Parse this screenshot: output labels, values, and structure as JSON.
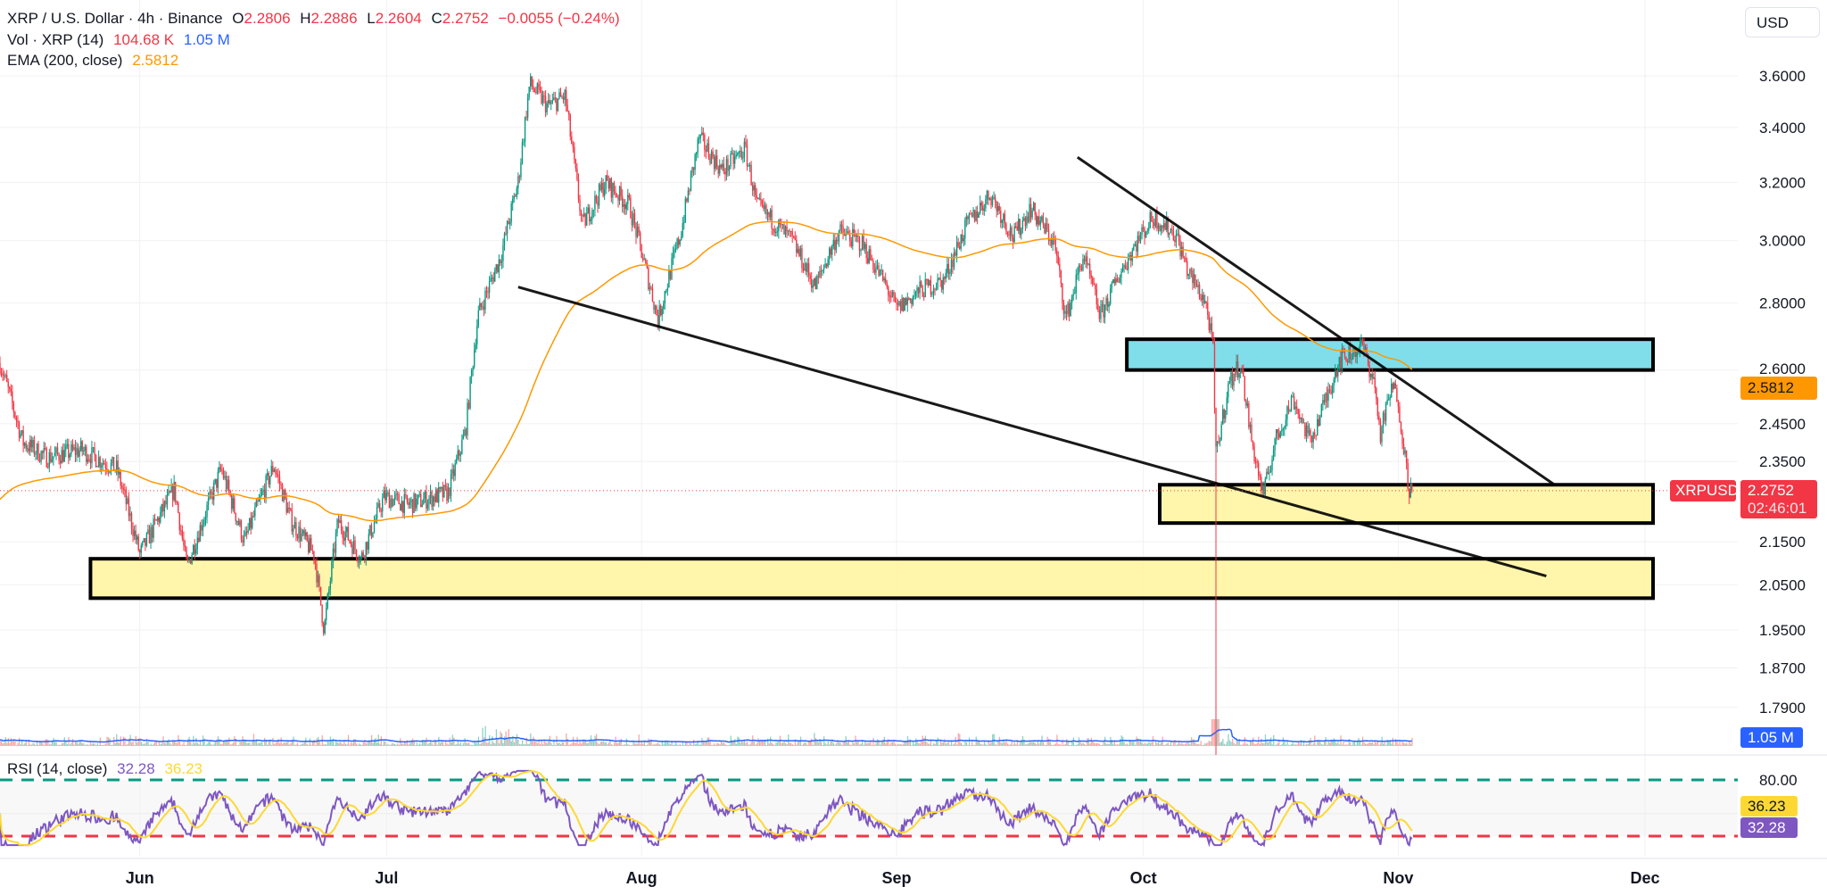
{
  "header": {
    "symbol": "XRP / U.S. Dollar · 4h · Binance",
    "o_label": "O",
    "o": "2.2806",
    "h_label": "H",
    "h": "2.2886",
    "l_label": "L",
    "l": "2.2604",
    "c_label": "C",
    "c": "2.2752",
    "change": "−0.0055 (−0.24%)"
  },
  "volume": {
    "label": "Vol · XRP (14)",
    "value": "104.68 K",
    "ma": "1.05 M",
    "tag": "1.05 M"
  },
  "ema": {
    "label": "EMA (200, close)",
    "value": "2.5812",
    "tag": "2.5812"
  },
  "rsi": {
    "label": "RSI (14, close)",
    "value": "32.28",
    "ma": "36.23",
    "upper_label": "80.00"
  },
  "currency_button": "USD",
  "price_tag": {
    "symbol": "XRPUSD",
    "price": "2.2752",
    "countdown": "02:46:01"
  },
  "colors": {
    "up": "#089981",
    "down": "#f23645",
    "ema": "#ff9800",
    "rsi": "#7e57c2",
    "rsi_ma": "#fdd835",
    "volume_ma": "#2962ff",
    "zone_blue": "#80deea",
    "zone_yellow": "#fff59d"
  },
  "chart_data": {
    "type": "candlestick",
    "title": "XRP / U.S. Dollar · 4h · Binance",
    "scale": "log",
    "y_ticks": [
      "3.6000",
      "3.4000",
      "3.2000",
      "3.0000",
      "2.8000",
      "2.6000",
      "2.4500",
      "2.3500",
      "2.1500",
      "2.0500",
      "1.9500",
      "1.8700",
      "1.7900"
    ],
    "x_ticks": [
      {
        "label": "Jun",
        "day": 17
      },
      {
        "label": "Jul",
        "day": 47
      },
      {
        "label": "Aug",
        "day": 78
      },
      {
        "label": "Sep",
        "day": 109
      },
      {
        "label": "Oct",
        "day": 139
      },
      {
        "label": "Nov",
        "day": 170
      },
      {
        "label": "Dec",
        "day": 200
      }
    ],
    "x_unit": "days since May 15",
    "close_path": [
      [
        0,
        2.62
      ],
      [
        2.8,
        2.4
      ],
      [
        5.7,
        2.36
      ],
      [
        9.9,
        2.38
      ],
      [
        14.2,
        2.33
      ],
      [
        17,
        2.12
      ],
      [
        21.2,
        2.28
      ],
      [
        22.7,
        2.09
      ],
      [
        26.9,
        2.33
      ],
      [
        29.7,
        2.15
      ],
      [
        33.3,
        2.34
      ],
      [
        35.4,
        2.2
      ],
      [
        38.2,
        2.12
      ],
      [
        39.4,
        1.95
      ],
      [
        41.1,
        2.2
      ],
      [
        43.9,
        2.11
      ],
      [
        46.7,
        2.26
      ],
      [
        49.6,
        2.24
      ],
      [
        54.5,
        2.27
      ],
      [
        56.6,
        2.43
      ],
      [
        58.1,
        2.76
      ],
      [
        60.9,
        2.95
      ],
      [
        63,
        3.2
      ],
      [
        64.4,
        3.57
      ],
      [
        66.6,
        3.48
      ],
      [
        68.7,
        3.52
      ],
      [
        70.1,
        3.2
      ],
      [
        70.8,
        3.05
      ],
      [
        73.6,
        3.2
      ],
      [
        76.5,
        3.12
      ],
      [
        80,
        2.75
      ],
      [
        82.8,
        3.03
      ],
      [
        85,
        3.36
      ],
      [
        87.8,
        3.24
      ],
      [
        90.6,
        3.32
      ],
      [
        92,
        3.12
      ],
      [
        96.3,
        3.0
      ],
      [
        99.1,
        2.85
      ],
      [
        102,
        3.03
      ],
      [
        104.8,
        2.99
      ],
      [
        107.6,
        2.86
      ],
      [
        109,
        2.78
      ],
      [
        111.9,
        2.84
      ],
      [
        114.7,
        2.87
      ],
      [
        117.5,
        3.05
      ],
      [
        120.4,
        3.16
      ],
      [
        123.2,
        3.01
      ],
      [
        125.3,
        3.11
      ],
      [
        128.2,
        2.99
      ],
      [
        129.6,
        2.75
      ],
      [
        131.7,
        2.95
      ],
      [
        133.8,
        2.76
      ],
      [
        135.9,
        2.88
      ],
      [
        138.1,
        2.99
      ],
      [
        140.2,
        3.08
      ],
      [
        143,
        3.02
      ],
      [
        144.4,
        2.9
      ],
      [
        146.6,
        2.8
      ],
      [
        147.5,
        2.66
      ],
      [
        147.8,
        2.36
      ],
      [
        149.4,
        2.56
      ],
      [
        150.8,
        2.62
      ],
      [
        152.2,
        2.4
      ],
      [
        153.6,
        2.26
      ],
      [
        155,
        2.4
      ],
      [
        157.2,
        2.52
      ],
      [
        159.3,
        2.4
      ],
      [
        161.4,
        2.53
      ],
      [
        162.8,
        2.63
      ],
      [
        165.7,
        2.67
      ],
      [
        167.1,
        2.56
      ],
      [
        167.8,
        2.42
      ],
      [
        169.2,
        2.55
      ],
      [
        169.9,
        2.53
      ],
      [
        170.6,
        2.4
      ],
      [
        171.3,
        2.28
      ],
      [
        171.8,
        2.2752
      ]
    ],
    "crash_wick": {
      "day": 147.8,
      "low": 1.25
    },
    "ema_start": 2.25,
    "rsi_levels": {
      "upper": 80,
      "middle": 50,
      "lower": 30
    },
    "zones": [
      {
        "name": "resistance-zone",
        "color": "blue",
        "from_day": 137,
        "to_day": 201,
        "low": 2.6,
        "high": 2.69
      },
      {
        "name": "support-zone-near",
        "color": "yellow",
        "from_day": 141,
        "to_day": 201,
        "low": 2.195,
        "high": 2.29
      },
      {
        "name": "support-zone-major",
        "color": "yellow",
        "from_day": 11,
        "to_day": 201,
        "low": 2.02,
        "high": 2.11
      }
    ],
    "trendlines": [
      {
        "name": "upper-trendline",
        "from": [
          131,
          3.29
        ],
        "to": [
          189,
          2.29
        ]
      },
      {
        "name": "lower-trendline",
        "from": [
          63,
          2.85
        ],
        "to": [
          188,
          2.07
        ]
      }
    ]
  }
}
